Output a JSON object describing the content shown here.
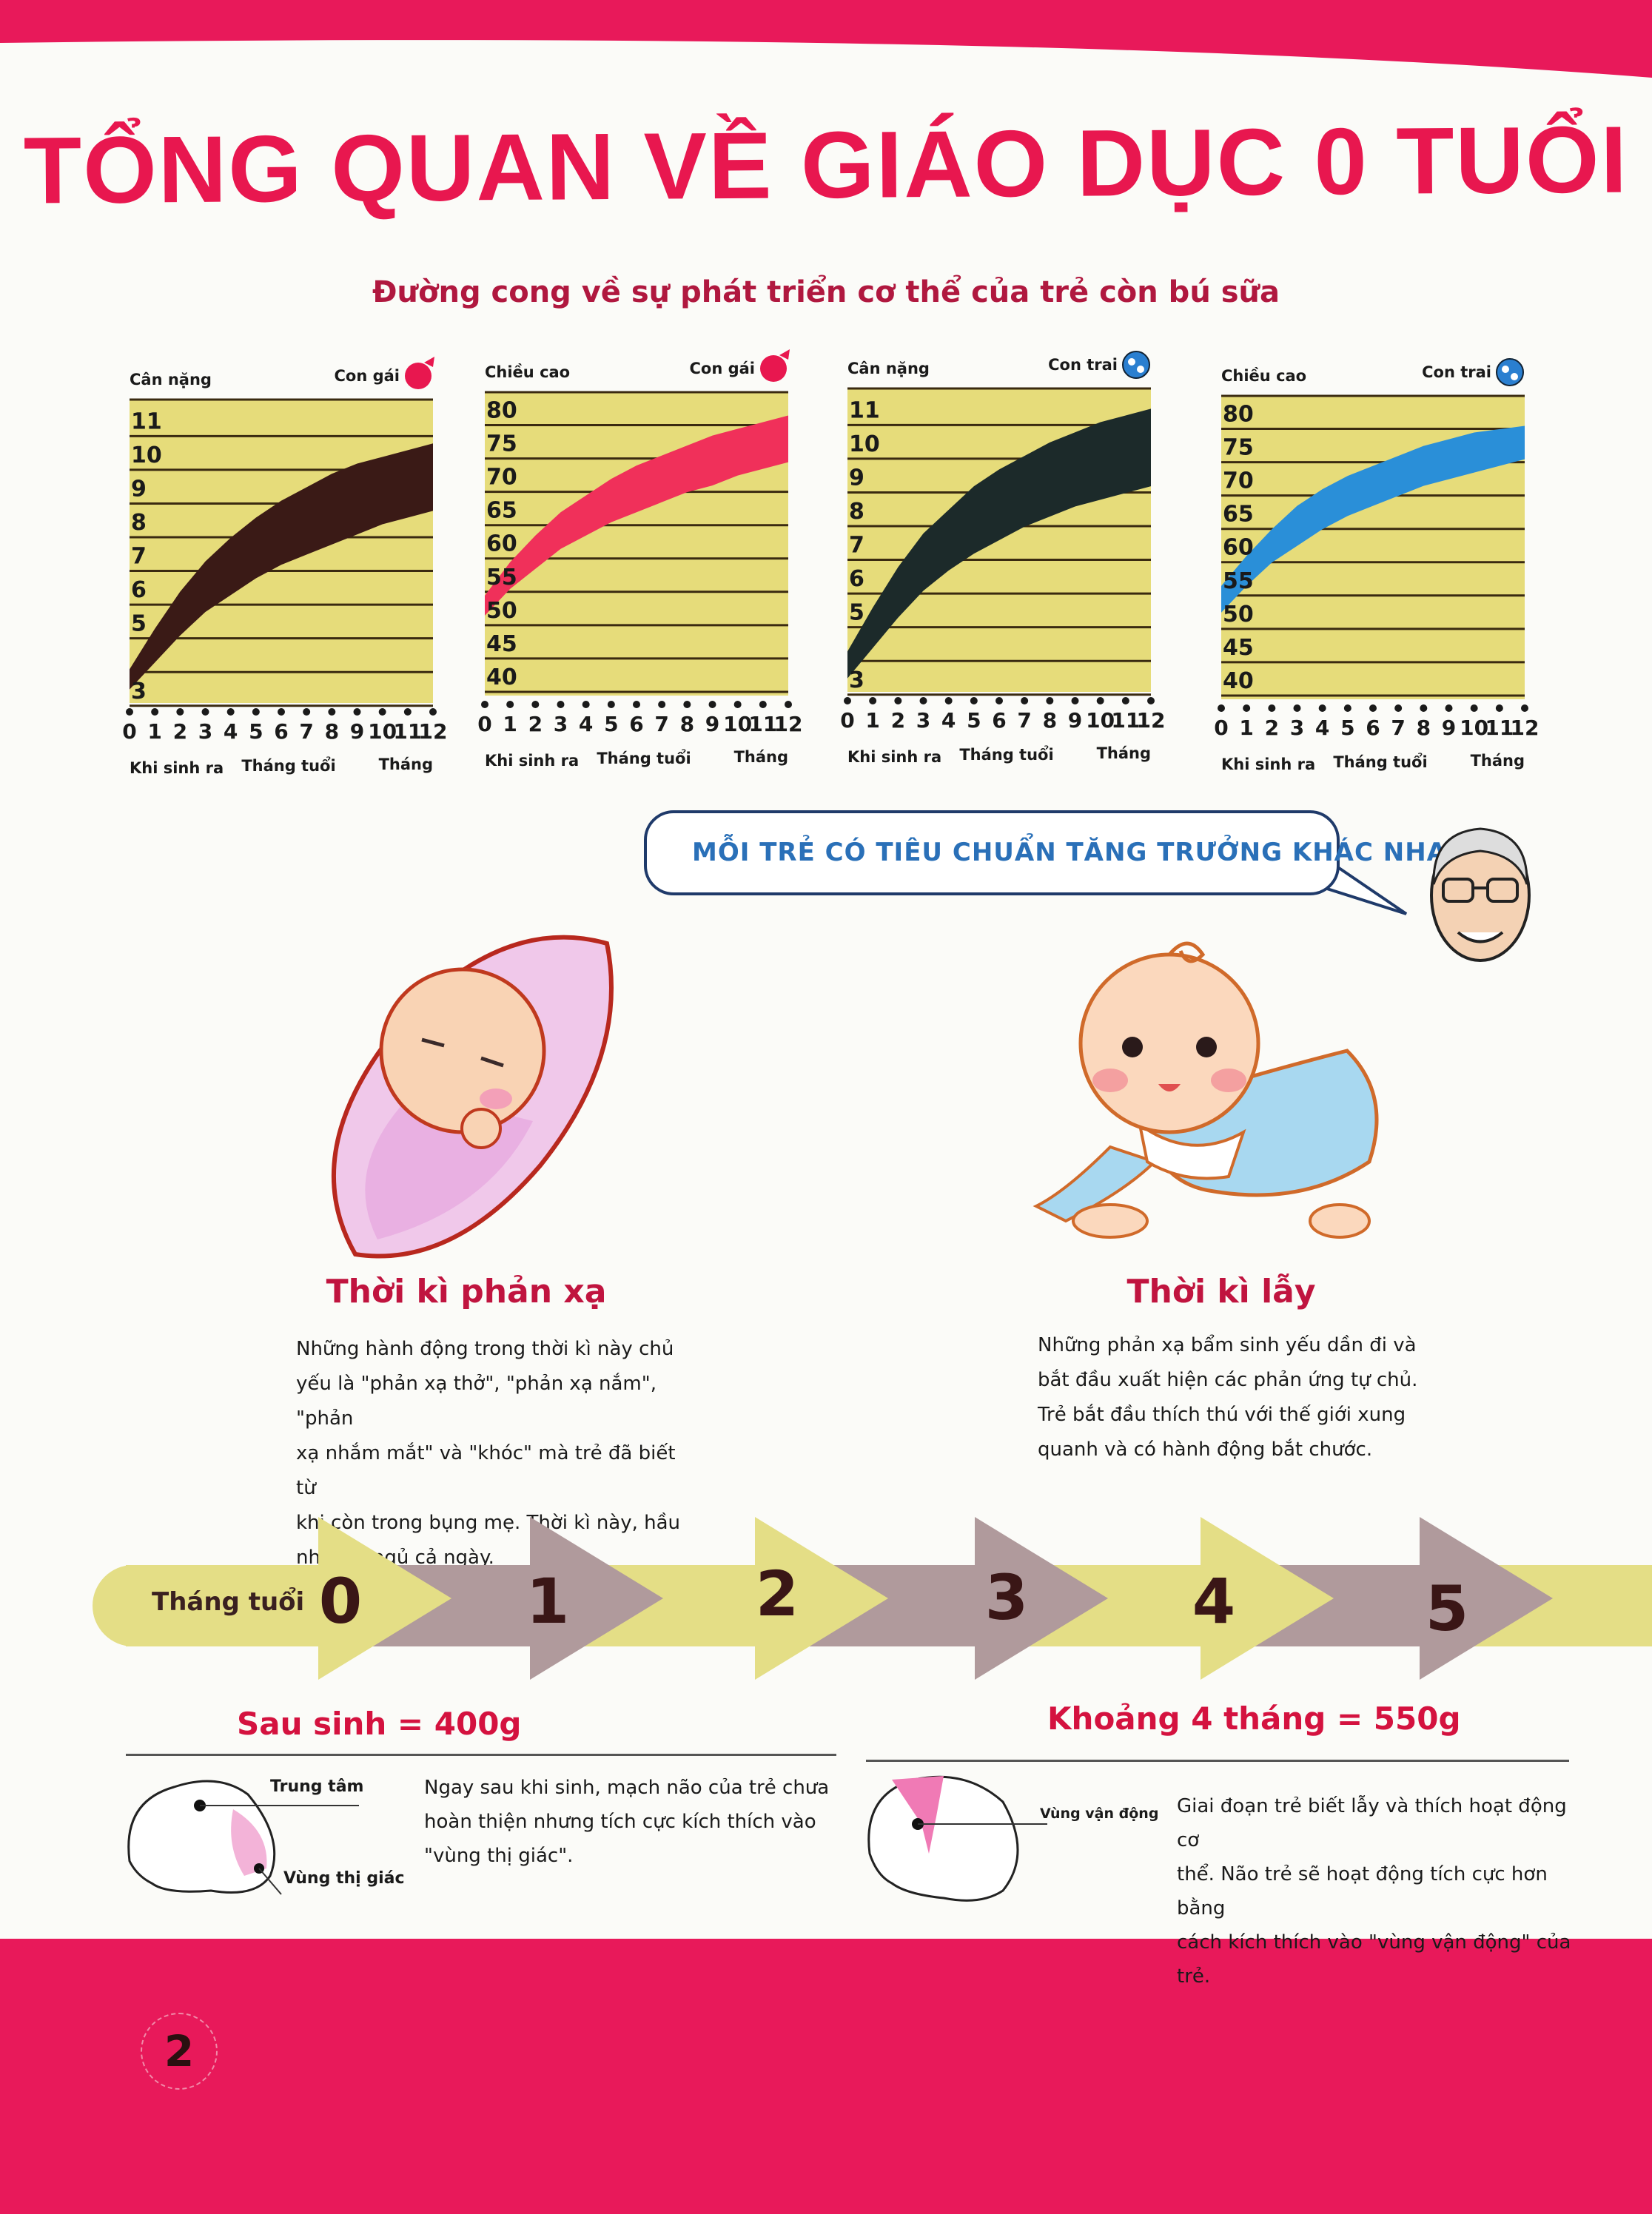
{
  "page": {
    "title": "TỔNG QUAN VỀ GIÁO DỤC 0 TUỔI",
    "subtitle": "Đường cong về sự phát triển cơ thể của trẻ còn bú sữa",
    "page_number": "2",
    "colors": {
      "accent": "#e8174f",
      "band": "#e8195a",
      "chart_bg": "#e6dc7a"
    }
  },
  "chart_data": [
    {
      "type": "area",
      "ylabel": "Cân nặng",
      "legend": "Con gái",
      "legend_icon": "girl-icon",
      "color": "#3a1a16",
      "x": [
        0,
        1,
        2,
        3,
        4,
        5,
        6,
        7,
        8,
        9,
        10,
        11,
        12
      ],
      "x_tick_labels": [
        "0",
        "1",
        "2",
        "3",
        "4",
        "5",
        "6",
        "7",
        "8",
        "9",
        "10",
        "11",
        "12"
      ],
      "xlabel_left": "Khi sinh ra",
      "xlabel_mid": "Tháng tuổi",
      "xlabel_right": "Tháng",
      "ylim": [
        2.6,
        11.6
      ],
      "y_tick_labels": [
        "11",
        "10",
        "9",
        "8",
        "7",
        "6",
        "5",
        "3"
      ],
      "y_ticks": [
        11,
        10,
        9,
        8,
        7,
        6,
        5,
        3
      ],
      "grid": true,
      "series": [
        {
          "role": "lower",
          "values": [
            3.0,
            3.8,
            4.6,
            5.3,
            5.8,
            6.3,
            6.7,
            7.0,
            7.3,
            7.6,
            7.9,
            8.1,
            8.3
          ]
        },
        {
          "role": "upper",
          "values": [
            3.6,
            4.8,
            5.9,
            6.8,
            7.5,
            8.1,
            8.6,
            9.0,
            9.4,
            9.7,
            9.9,
            10.1,
            10.3
          ]
        }
      ]
    },
    {
      "type": "area",
      "ylabel": "Chiều cao",
      "legend": "Con gái",
      "legend_icon": "girl-icon",
      "color": "#f0305a",
      "x": [
        0,
        1,
        2,
        3,
        4,
        5,
        6,
        7,
        8,
        9,
        10,
        11,
        12
      ],
      "x_tick_labels": [
        "0",
        "1",
        "2",
        "3",
        "4",
        "5",
        "6",
        "7",
        "8",
        "9",
        "10",
        "11",
        "12"
      ],
      "xlabel_left": "Khi sinh ra",
      "xlabel_mid": "Tháng tuổi",
      "xlabel_right": "Tháng",
      "ylim": [
        37,
        82.5
      ],
      "y_tick_labels": [
        "80",
        "75",
        "70",
        "65",
        "60",
        "55",
        "50",
        "45",
        "40"
      ],
      "y_ticks": [
        80,
        75,
        70,
        65,
        60,
        55,
        50,
        45,
        40
      ],
      "grid": true,
      "series": [
        {
          "role": "lower",
          "values": [
            49,
            53,
            56,
            59,
            61,
            63,
            64.5,
            66,
            67.5,
            68.5,
            70,
            71,
            72
          ]
        },
        {
          "role": "upper",
          "values": [
            52,
            57,
            61,
            64.5,
            67,
            69.5,
            71.5,
            73,
            74.5,
            76,
            77,
            78,
            79
          ]
        }
      ]
    },
    {
      "type": "area",
      "ylabel": "Cân nặng",
      "legend": "Con trai",
      "legend_icon": "boy-icon",
      "color": "#1c2a2a",
      "x": [
        0,
        1,
        2,
        3,
        4,
        5,
        6,
        7,
        8,
        9,
        10,
        11,
        12
      ],
      "x_tick_labels": [
        "0",
        "1",
        "2",
        "3",
        "4",
        "5",
        "6",
        "7",
        "8",
        "9",
        "10",
        "11",
        "12"
      ],
      "xlabel_left": "Khi sinh ra",
      "xlabel_mid": "Tháng tuổi",
      "xlabel_right": "Tháng",
      "ylim": [
        2.6,
        11.6
      ],
      "y_tick_labels": [
        "11",
        "10",
        "9",
        "8",
        "7",
        "6",
        "5",
        "3"
      ],
      "y_ticks": [
        11,
        10,
        9,
        8,
        7,
        6,
        5,
        3
      ],
      "grid": true,
      "series": [
        {
          "role": "lower",
          "values": [
            3.0,
            3.9,
            4.8,
            5.6,
            6.2,
            6.7,
            7.1,
            7.5,
            7.8,
            8.1,
            8.3,
            8.5,
            8.7
          ]
        },
        {
          "role": "upper",
          "values": [
            3.8,
            5.1,
            6.3,
            7.3,
            8.0,
            8.7,
            9.2,
            9.6,
            10.0,
            10.3,
            10.6,
            10.8,
            11.0
          ]
        }
      ]
    },
    {
      "type": "area",
      "ylabel": "Chiều cao",
      "legend": "Con trai",
      "legend_icon": "boy-icon",
      "color": "#2a8fd8",
      "x": [
        0,
        1,
        2,
        3,
        4,
        5,
        6,
        7,
        8,
        9,
        10,
        11,
        12
      ],
      "x_tick_labels": [
        "0",
        "1",
        "2",
        "3",
        "4",
        "5",
        "6",
        "7",
        "8",
        "9",
        "10",
        "11",
        "12"
      ],
      "xlabel_left": "Khi sinh ra",
      "xlabel_mid": "Tháng tuổi",
      "xlabel_right": "Tháng",
      "ylim": [
        37,
        82.5
      ],
      "y_tick_labels": [
        "80",
        "75",
        "70",
        "65",
        "60",
        "55",
        "50",
        "45",
        "40"
      ],
      "y_ticks": [
        80,
        75,
        70,
        65,
        60,
        55,
        50,
        45,
        40
      ],
      "grid": true,
      "series": [
        {
          "role": "lower",
          "values": [
            50,
            54,
            57.5,
            60,
            62.5,
            64.5,
            66,
            67.5,
            69,
            70,
            71,
            72,
            73
          ]
        },
        {
          "role": "upper",
          "values": [
            54,
            58.5,
            62.5,
            66,
            68.5,
            70.5,
            72,
            73.5,
            75,
            76,
            77,
            77.5,
            78
          ]
        }
      ]
    }
  ],
  "speech": {
    "text": "MỖI TRẺ CÓ TIÊU CHUẨN TĂNG TRƯỞNG KHÁC NHAU."
  },
  "stages": [
    {
      "title": "Thời kì phản xạ",
      "lines": [
        "Những hành động trong thời kì này chủ",
        "yếu là \"phản xạ thở\", \"phản xạ nắm\", \"phản",
        "xạ nhắm mắt\" và \"khóc\" mà trẻ đã biết từ",
        "khi còn trong bụng mẹ. Thời kì này, hầu",
        "như trẻ ngủ cả ngày."
      ]
    },
    {
      "title": "Thời kì lẫy",
      "lines": [
        "Những phản xạ bẩm sinh yếu dần đi và",
        "bắt đầu xuất hiện các phản ứng tự chủ.",
        "Trẻ bắt đầu thích thú với thế giới xung",
        "quanh và có hành động bắt chước."
      ]
    }
  ],
  "timeline": {
    "label": "Tháng tuổi",
    "months": [
      "0",
      "1",
      "2",
      "3",
      "4",
      "5"
    ],
    "colors": {
      "light": "#e4de86",
      "dark": "#b09a9c"
    }
  },
  "brain": [
    {
      "weight": "Sau sinh = 400g",
      "labels": [
        "Trung tâm",
        "Vùng thị giác"
      ],
      "lines": [
        "Ngay sau khi sinh, mạch não của trẻ chưa",
        "hoàn thiện nhưng tích cực kích thích vào",
        "\"vùng thị giác\"."
      ]
    },
    {
      "weight": "Khoảng 4 tháng = 550g",
      "labels": [
        "Vùng vận động"
      ],
      "lines": [
        "Giai đoạn trẻ biết lẫy và thích hoạt động cơ",
        "thể. Não trẻ sẽ hoạt động tích cực hơn bằng",
        "cách kích thích vào \"vùng vận động\" của trẻ."
      ]
    }
  ]
}
